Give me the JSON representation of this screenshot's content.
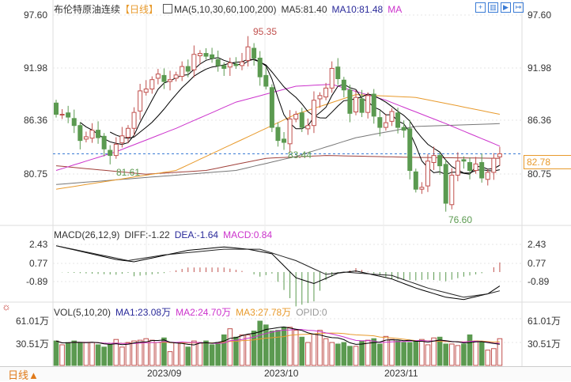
{
  "header": {
    "title": "布伦特原油连续",
    "period": "【日线】",
    "ma_label": "MA(5,10,30,60,100,200)",
    "ma5": "MA5:81.40",
    "ma10": "MA10:81.48",
    "ma30": "MA",
    "tools": [
      "move-icon",
      "bar-icon",
      "chart-icon",
      "next-icon"
    ]
  },
  "price_axis": {
    "ticks": [
      "97.60",
      "91.98",
      "86.36",
      "80.75"
    ],
    "current": "82.78"
  },
  "annotations": {
    "high": "95.35",
    "low1": "81.61",
    "low2": "83.44",
    "low3": "76.60"
  },
  "macd": {
    "label": "MACD(26,12,9)",
    "diff": "DIFF:-1.22",
    "dea": "DEA:-1.64",
    "macd": "MACD:0.84",
    "ticks": [
      "2.43",
      "0.77",
      "-0.89"
    ]
  },
  "vol": {
    "label": "VOL(5,10,20)",
    "ma1": "MA1:23.08万",
    "ma2": "MA2:24.70万",
    "ma3": "MA3:27.78万",
    "opid": "OPID:0",
    "ticks": [
      "61.01万",
      "30.51万"
    ]
  },
  "footer": {
    "period": "日线▲",
    "dates": [
      "2023/09",
      "2023/10",
      "2023/11"
    ]
  },
  "colors": {
    "up": "#c0504d",
    "down": "#5b9a50",
    "ma5": "#000000",
    "ma10": "#000000",
    "ma30": "#cc33cc",
    "ma60": "#e89a2c",
    "ma100": "#777777",
    "ma200": "#a0403a",
    "current_line": "#3a7bd5"
  },
  "chart_data": {
    "type": "candlestick",
    "close": [
      87.0,
      87.0,
      86.7,
      85.8,
      84.2,
      84.6,
      85.3,
      84.5,
      83.3,
      82.6,
      83.8,
      84.7,
      85.5,
      87.2,
      89.5,
      89.7,
      90.7,
      91.3,
      90.5,
      90.7,
      91.2,
      92.1,
      91.6,
      93.4,
      93.5,
      93.2,
      93.0,
      92.2,
      91.9,
      92.5,
      92.2,
      92.6,
      94.2,
      93.0,
      91.0,
      90.0,
      85.6,
      84.2,
      84.0,
      86.5,
      87.0,
      85.6,
      85.8,
      88.5,
      89.0,
      89.8,
      91.9,
      90.8,
      89.6,
      87.1,
      88.8,
      87.2,
      89.0,
      86.8,
      85.6,
      86.1,
      87.3,
      85.6,
      85.3,
      81.0,
      79.0,
      79.2,
      82.0,
      82.6,
      81.5,
      77.5,
      80.5,
      82.0,
      82.0,
      81.0,
      81.7,
      80.2,
      80.8,
      82.3,
      82.78
    ],
    "first_open": 88.2,
    "high": 95.35,
    "low": 76.6,
    "ma_long": {
      "ma30": [
        [
          0,
          81.0
        ],
        [
          10,
          83.0
        ],
        [
          20,
          85.5
        ],
        [
          30,
          88.3
        ],
        [
          40,
          90.0
        ],
        [
          46,
          90.2
        ],
        [
          55,
          88.5
        ],
        [
          65,
          86.0
        ],
        [
          74,
          83.6
        ]
      ],
      "ma60": [
        [
          0,
          79.0
        ],
        [
          20,
          81.0
        ],
        [
          30,
          84.0
        ],
        [
          40,
          87.0
        ],
        [
          50,
          89.1
        ],
        [
          60,
          88.8
        ],
        [
          74,
          87.0
        ]
      ],
      "ma100": [
        [
          0,
          79.5
        ],
        [
          20,
          80.5
        ],
        [
          30,
          81.0
        ],
        [
          40,
          82.5
        ],
        [
          50,
          84.5
        ],
        [
          60,
          85.7
        ],
        [
          74,
          86.0
        ]
      ],
      "ma200": [
        [
          0,
          81.5
        ],
        [
          15,
          80.6
        ],
        [
          25,
          81.0
        ],
        [
          35,
          82.3
        ],
        [
          45,
          82.6
        ],
        [
          60,
          82.4
        ],
        [
          74,
          82.3
        ]
      ]
    },
    "macd_diff": [
      [
        0,
        2.3
      ],
      [
        10,
        1.1
      ],
      [
        13,
        0.9
      ],
      [
        22,
        1.9
      ],
      [
        28,
        2.2
      ],
      [
        32,
        2.0
      ],
      [
        36,
        1.6
      ],
      [
        40,
        -0.5
      ],
      [
        43,
        -1.0
      ],
      [
        47,
        -0.1
      ],
      [
        50,
        0.1
      ],
      [
        56,
        -0.6
      ],
      [
        60,
        -1.4
      ],
      [
        65,
        -2.2
      ],
      [
        68,
        -2.4
      ],
      [
        72,
        -1.9
      ],
      [
        74,
        -1.22
      ]
    ],
    "macd_dea": [
      [
        0,
        2.3
      ],
      [
        12,
        1.0
      ],
      [
        18,
        1.5
      ],
      [
        28,
        2.0
      ],
      [
        34,
        2.0
      ],
      [
        40,
        1.0
      ],
      [
        45,
        -0.2
      ],
      [
        48,
        0.0
      ],
      [
        56,
        -0.3
      ],
      [
        62,
        -1.4
      ],
      [
        68,
        -2.2
      ],
      [
        72,
        -1.9
      ],
      [
        74,
        -1.64
      ]
    ],
    "volume": [
      32,
      27,
      30,
      32,
      30,
      30,
      30,
      27,
      24,
      27,
      34,
      24,
      30,
      32,
      33,
      35,
      33,
      30,
      36,
      18,
      30,
      30,
      24,
      32,
      30,
      32,
      27,
      30,
      40,
      48,
      37,
      40,
      40,
      45,
      58,
      53,
      45,
      46,
      50,
      50,
      46,
      37,
      30,
      41,
      46,
      35,
      30,
      28,
      30,
      25,
      25,
      32,
      33,
      35,
      28,
      38,
      34,
      32,
      30,
      30,
      32,
      34,
      27,
      36,
      37,
      28,
      28,
      26,
      28,
      40,
      32,
      30,
      20,
      22,
      35
    ]
  }
}
